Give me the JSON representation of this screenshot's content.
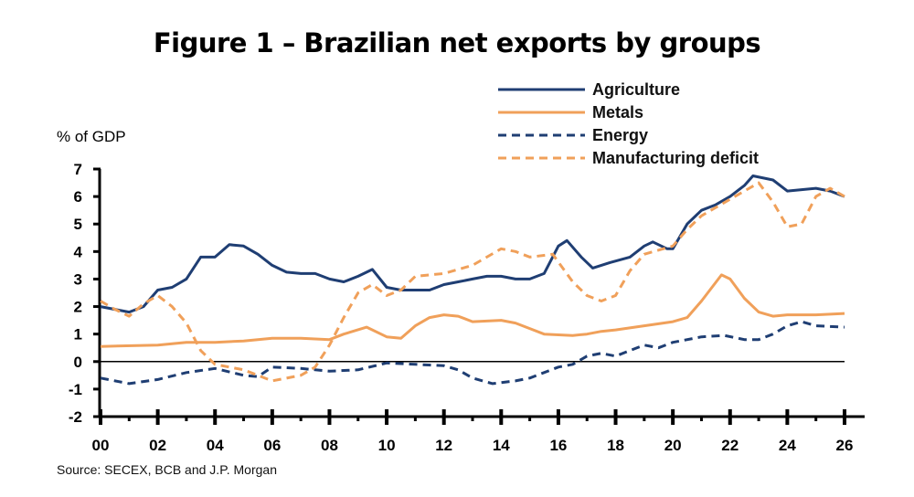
{
  "chart_data": {
    "type": "line",
    "title": "Figure 1 – Brazilian net exports by groups",
    "ylabel": "% of GDP",
    "source": "Source: SECEX, BCB and J.P. Morgan",
    "ylim": [
      -2,
      7
    ],
    "xlim": [
      0,
      26
    ],
    "yticks": [
      "7",
      "6",
      "5",
      "4",
      "3",
      "2",
      "1",
      "0",
      "-1",
      "-2"
    ],
    "xticks": [
      "00",
      "02",
      "04",
      "06",
      "08",
      "10",
      "12",
      "14",
      "16",
      "18",
      "20",
      "22",
      "24",
      "26"
    ],
    "legend_position": "top-right",
    "grid": false,
    "series": [
      {
        "name": "Agriculture",
        "color": "#1f3e73",
        "style": "solid",
        "points": [
          [
            0,
            2.0
          ],
          [
            1,
            1.8
          ],
          [
            1.5,
            2.0
          ],
          [
            2,
            2.6
          ],
          [
            2.5,
            2.7
          ],
          [
            3,
            3.0
          ],
          [
            3.5,
            3.8
          ],
          [
            4,
            3.8
          ],
          [
            4.5,
            4.25
          ],
          [
            5,
            4.2
          ],
          [
            5.5,
            3.9
          ],
          [
            6,
            3.5
          ],
          [
            6.5,
            3.25
          ],
          [
            7,
            3.2
          ],
          [
            7.5,
            3.2
          ],
          [
            8,
            3.0
          ],
          [
            8.5,
            2.9
          ],
          [
            9,
            3.1
          ],
          [
            9.5,
            3.35
          ],
          [
            10,
            2.7
          ],
          [
            10.5,
            2.6
          ],
          [
            11,
            2.6
          ],
          [
            11.5,
            2.6
          ],
          [
            12,
            2.8
          ],
          [
            12.5,
            2.9
          ],
          [
            13,
            3.0
          ],
          [
            13.5,
            3.1
          ],
          [
            14,
            3.1
          ],
          [
            14.5,
            3.0
          ],
          [
            15,
            3.0
          ],
          [
            15.5,
            3.2
          ],
          [
            16,
            4.2
          ],
          [
            16.3,
            4.4
          ],
          [
            16.8,
            3.8
          ],
          [
            17.2,
            3.4
          ],
          [
            17.8,
            3.6
          ],
          [
            18.5,
            3.8
          ],
          [
            19,
            4.2
          ],
          [
            19.3,
            4.35
          ],
          [
            19.8,
            4.1
          ],
          [
            20,
            4.1
          ],
          [
            20.5,
            5.0
          ],
          [
            21,
            5.5
          ],
          [
            21.5,
            5.7
          ],
          [
            22,
            6.0
          ],
          [
            22.5,
            6.4
          ],
          [
            22.8,
            6.75
          ],
          [
            23.5,
            6.6
          ],
          [
            24,
            6.2
          ],
          [
            24.5,
            6.25
          ],
          [
            25,
            6.3
          ],
          [
            25.5,
            6.2
          ],
          [
            26,
            6.0
          ]
        ]
      },
      {
        "name": "Metals",
        "color": "#f0a05a",
        "style": "solid",
        "points": [
          [
            0,
            0.55
          ],
          [
            2,
            0.6
          ],
          [
            3,
            0.7
          ],
          [
            4,
            0.7
          ],
          [
            5,
            0.75
          ],
          [
            6,
            0.85
          ],
          [
            7,
            0.85
          ],
          [
            8,
            0.8
          ],
          [
            8.5,
            1.0
          ],
          [
            9.3,
            1.25
          ],
          [
            10,
            0.9
          ],
          [
            10.5,
            0.85
          ],
          [
            11,
            1.3
          ],
          [
            11.5,
            1.6
          ],
          [
            12,
            1.7
          ],
          [
            12.5,
            1.65
          ],
          [
            13,
            1.45
          ],
          [
            14,
            1.5
          ],
          [
            14.5,
            1.4
          ],
          [
            15,
            1.2
          ],
          [
            15.5,
            1.0
          ],
          [
            16.5,
            0.95
          ],
          [
            17,
            1.0
          ],
          [
            17.5,
            1.1
          ],
          [
            18,
            1.15
          ],
          [
            19,
            1.3
          ],
          [
            20,
            1.45
          ],
          [
            20.5,
            1.6
          ],
          [
            21,
            2.2
          ],
          [
            21.7,
            3.15
          ],
          [
            22,
            3.0
          ],
          [
            22.5,
            2.3
          ],
          [
            23,
            1.8
          ],
          [
            23.5,
            1.65
          ],
          [
            24,
            1.7
          ],
          [
            25,
            1.7
          ],
          [
            26,
            1.75
          ]
        ]
      },
      {
        "name": "Energy",
        "color": "#1f3e73",
        "style": "dashed",
        "points": [
          [
            0,
            -0.6
          ],
          [
            1,
            -0.8
          ],
          [
            2,
            -0.65
          ],
          [
            3,
            -0.4
          ],
          [
            4,
            -0.25
          ],
          [
            5,
            -0.5
          ],
          [
            5.5,
            -0.55
          ],
          [
            6,
            -0.2
          ],
          [
            7,
            -0.25
          ],
          [
            8,
            -0.35
          ],
          [
            9,
            -0.3
          ],
          [
            10,
            -0.05
          ],
          [
            11,
            -0.1
          ],
          [
            12,
            -0.15
          ],
          [
            12.5,
            -0.3
          ],
          [
            13,
            -0.6
          ],
          [
            13.7,
            -0.8
          ],
          [
            14.5,
            -0.7
          ],
          [
            15,
            -0.6
          ],
          [
            16,
            -0.2
          ],
          [
            16.5,
            -0.1
          ],
          [
            17,
            0.2
          ],
          [
            17.5,
            0.3
          ],
          [
            18,
            0.2
          ],
          [
            18.5,
            0.4
          ],
          [
            19,
            0.6
          ],
          [
            19.5,
            0.5
          ],
          [
            20,
            0.7
          ],
          [
            21,
            0.9
          ],
          [
            21.8,
            0.95
          ],
          [
            22.5,
            0.8
          ],
          [
            23,
            0.8
          ],
          [
            23.5,
            1.0
          ],
          [
            24,
            1.3
          ],
          [
            24.5,
            1.45
          ],
          [
            25,
            1.3
          ],
          [
            26,
            1.25
          ]
        ]
      },
      {
        "name": "Manufacturing deficit",
        "color": "#f0a05a",
        "style": "dashed",
        "points": [
          [
            0,
            2.2
          ],
          [
            0.5,
            1.9
          ],
          [
            1,
            1.65
          ],
          [
            1.5,
            2.1
          ],
          [
            2,
            2.4
          ],
          [
            2.5,
            2.0
          ],
          [
            3,
            1.4
          ],
          [
            3.5,
            0.4
          ],
          [
            4,
            -0.1
          ],
          [
            5,
            -0.3
          ],
          [
            6,
            -0.7
          ],
          [
            7,
            -0.5
          ],
          [
            7.5,
            -0.2
          ],
          [
            8,
            0.6
          ],
          [
            8.5,
            1.6
          ],
          [
            9,
            2.5
          ],
          [
            9.5,
            2.8
          ],
          [
            10,
            2.4
          ],
          [
            10.5,
            2.6
          ],
          [
            11,
            3.1
          ],
          [
            12,
            3.2
          ],
          [
            13,
            3.5
          ],
          [
            14,
            4.1
          ],
          [
            14.5,
            4.0
          ],
          [
            15,
            3.8
          ],
          [
            15.8,
            3.9
          ],
          [
            16.5,
            2.9
          ],
          [
            17,
            2.4
          ],
          [
            17.5,
            2.2
          ],
          [
            18,
            2.4
          ],
          [
            18.5,
            3.3
          ],
          [
            19,
            3.9
          ],
          [
            20,
            4.2
          ],
          [
            20.5,
            4.8
          ],
          [
            21,
            5.3
          ],
          [
            22,
            5.9
          ],
          [
            22.5,
            6.2
          ],
          [
            23,
            6.5
          ],
          [
            23.5,
            5.8
          ],
          [
            24,
            4.9
          ],
          [
            24.5,
            5.0
          ],
          [
            25,
            6.0
          ],
          [
            25.5,
            6.3
          ],
          [
            26,
            6.0
          ]
        ]
      }
    ]
  }
}
